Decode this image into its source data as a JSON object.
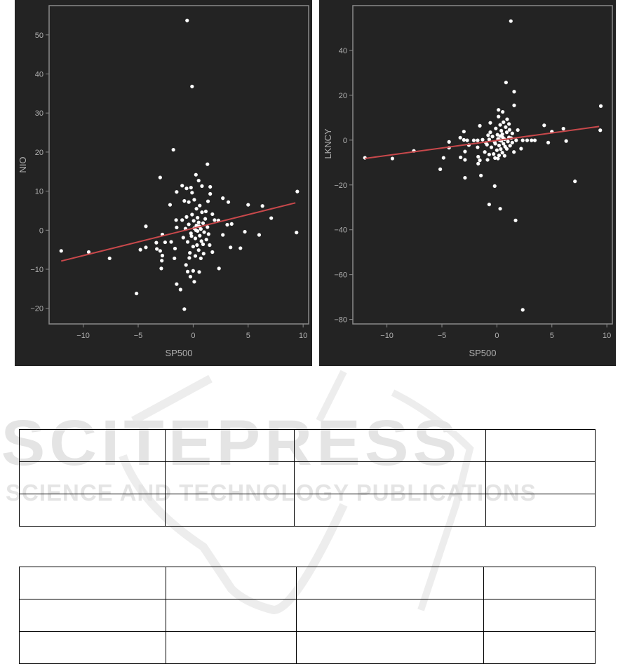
{
  "watermark": {
    "title": "SCITEPRESS",
    "subtitle": "SCIENCE AND TECHNOLOGY PUBLICATIONS"
  },
  "colors": {
    "panel_bg": "#232323",
    "point": "#ffffff",
    "regression": "#c8484b",
    "axis": "#8a8a8a",
    "tick_text": "#b0b0b0"
  },
  "chart_data": [
    {
      "type": "scatter",
      "xlabel": "SP500",
      "ylabel": "NIO",
      "xlim": [
        -13.1,
        10.5
      ],
      "ylim": [
        -24,
        57.5
      ],
      "xticks": [
        -10,
        -5,
        0,
        5,
        10
      ],
      "yticks": [
        -20,
        -10,
        0,
        10,
        20,
        30,
        40,
        50
      ],
      "regression": {
        "x": [
          -12,
          9.3
        ],
        "y": [
          -7.9,
          7.0
        ]
      },
      "points": [
        [
          -0.55,
          53.7
        ],
        [
          -0.1,
          36.8
        ],
        [
          -1.8,
          20.6
        ],
        [
          1.3,
          16.9
        ],
        [
          -3.0,
          13.5
        ],
        [
          0.25,
          14.2
        ],
        [
          0.5,
          12.7
        ],
        [
          -1.0,
          11.4
        ],
        [
          -0.6,
          10.7
        ],
        [
          -0.2,
          10.9
        ],
        [
          0.8,
          11.3
        ],
        [
          1.55,
          11.1
        ],
        [
          1.55,
          9.3
        ],
        [
          -1.5,
          9.8
        ],
        [
          -0.1,
          9.6
        ],
        [
          9.47,
          9.9
        ],
        [
          2.7,
          8.2
        ],
        [
          3.2,
          7.2
        ],
        [
          -0.8,
          7.5
        ],
        [
          -0.4,
          7.2
        ],
        [
          -2.1,
          6.5
        ],
        [
          5.0,
          6.5
        ],
        [
          6.3,
          6.2
        ],
        [
          7.1,
          3.1
        ],
        [
          -1.55,
          2.6
        ],
        [
          -1.0,
          2.6
        ],
        [
          -4.3,
          1.0
        ],
        [
          3.1,
          1.4
        ],
        [
          3.5,
          1.6
        ],
        [
          4.7,
          -0.4
        ],
        [
          6.0,
          -1.2
        ],
        [
          9.4,
          -0.6
        ],
        [
          2.7,
          -1.2
        ],
        [
          -2.8,
          -1.1
        ],
        [
          -12.0,
          -5.3
        ],
        [
          -9.5,
          -5.6
        ],
        [
          -7.6,
          -7.2
        ],
        [
          -4.8,
          -5.0
        ],
        [
          -4.3,
          -4.4
        ],
        [
          -3.35,
          -3.2
        ],
        [
          -3.3,
          -4.8
        ],
        [
          -3.0,
          -5.3
        ],
        [
          -2.8,
          -6.5
        ],
        [
          -2.85,
          -7.8
        ],
        [
          -2.9,
          -9.8
        ],
        [
          -2.55,
          -3.1
        ],
        [
          -2.0,
          -3.0
        ],
        [
          -1.65,
          -4.7
        ],
        [
          -1.7,
          -7.2
        ],
        [
          -1.5,
          0.7
        ],
        [
          3.4,
          -4.4
        ],
        [
          4.3,
          -4.6
        ],
        [
          2.35,
          -9.8
        ],
        [
          1.75,
          -5.6
        ],
        [
          1.5,
          -3.8
        ],
        [
          -0.65,
          -8.9
        ],
        [
          -0.5,
          -10.6
        ],
        [
          0.0,
          -10.4
        ],
        [
          0.55,
          -10.7
        ],
        [
          -0.25,
          -11.9
        ],
        [
          0.1,
          -13.2
        ],
        [
          -1.5,
          -13.8
        ],
        [
          -1.15,
          -15.2
        ],
        [
          -5.15,
          -16.2
        ],
        [
          -0.8,
          -20.2
        ],
        [
          1.95,
          2.6
        ],
        [
          2.3,
          2.5
        ],
        [
          1.75,
          4.1
        ],
        [
          1.35,
          7.4
        ],
        [
          0.1,
          0.5
        ],
        [
          0.3,
          1.2
        ],
        [
          0.5,
          2.0
        ],
        [
          -0.2,
          -0.8
        ],
        [
          0.7,
          0.3
        ],
        [
          0.9,
          1.8
        ],
        [
          0.2,
          -2.1
        ],
        [
          -0.4,
          1.5
        ],
        [
          0.6,
          -1.4
        ],
        [
          1.0,
          -0.5
        ],
        [
          0.4,
          3.2
        ],
        [
          -0.1,
          4.0
        ],
        [
          0.8,
          4.6
        ],
        [
          0.3,
          5.5
        ],
        [
          -0.5,
          -3.0
        ],
        [
          0.0,
          -4.2
        ],
        [
          0.5,
          -5.1
        ],
        [
          0.9,
          -3.6
        ],
        [
          1.2,
          -2.4
        ],
        [
          -0.3,
          -5.8
        ],
        [
          0.2,
          -6.6
        ],
        [
          0.7,
          -7.2
        ],
        [
          1.1,
          2.9
        ],
        [
          -0.7,
          0.4
        ],
        [
          -0.9,
          -1.9
        ],
        [
          1.3,
          0.8
        ],
        [
          0.6,
          6.3
        ],
        [
          0.1,
          7.8
        ],
        [
          -0.6,
          3.4
        ],
        [
          1.4,
          -1.0
        ],
        [
          0.4,
          -0.2
        ],
        [
          0.05,
          2.4
        ],
        [
          0.75,
          -2.8
        ],
        [
          -0.15,
          -1.5
        ],
        [
          0.35,
          -3.8
        ],
        [
          0.95,
          -6.0
        ],
        [
          -0.35,
          -7.1
        ],
        [
          1.15,
          4.8
        ],
        [
          0.25,
          0.0
        ],
        [
          0.55,
          1.0
        ]
      ]
    },
    {
      "type": "scatter",
      "xlabel": "SP500",
      "ylabel": "LKNCY",
      "xlim": [
        -13.1,
        10.5
      ],
      "ylim": [
        -82,
        60
      ],
      "xticks": [
        -10,
        -5,
        0,
        5,
        10
      ],
      "yticks": [
        -80,
        -60,
        -40,
        -20,
        0,
        20,
        40
      ],
      "regression": {
        "x": [
          -12,
          9.3
        ],
        "y": [
          -8.2,
          6.1
        ]
      },
      "points": [
        [
          1.27,
          53.1
        ],
        [
          0.83,
          25.7
        ],
        [
          1.57,
          21.6
        ],
        [
          1.57,
          15.5
        ],
        [
          9.45,
          15.2
        ],
        [
          9.4,
          4.4
        ],
        [
          0.15,
          13.5
        ],
        [
          0.53,
          12.6
        ],
        [
          0.15,
          10.5
        ],
        [
          -1.55,
          6.4
        ],
        [
          4.3,
          6.6
        ],
        [
          6.05,
          5.1
        ],
        [
          5.0,
          3.8
        ],
        [
          1.9,
          4.5
        ],
        [
          -3.0,
          3.8
        ],
        [
          -3.33,
          1.1
        ],
        [
          -3.0,
          0.1
        ],
        [
          -2.7,
          -0.1
        ],
        [
          -2.1,
          -0.1
        ],
        [
          -1.75,
          -0.1
        ],
        [
          2.35,
          -0.1
        ],
        [
          2.75,
          -0.1
        ],
        [
          3.15,
          -0.1
        ],
        [
          3.45,
          -0.1
        ],
        [
          4.67,
          -1.1
        ],
        [
          6.3,
          -0.4
        ],
        [
          -4.35,
          -0.8
        ],
        [
          -4.35,
          -3.4
        ],
        [
          -2.55,
          -2.2
        ],
        [
          -2.9,
          -5.1
        ],
        [
          -12.0,
          -7.9
        ],
        [
          -9.5,
          -8.2
        ],
        [
          -7.55,
          -4.8
        ],
        [
          -4.85,
          -7.9
        ],
        [
          -3.3,
          -7.7
        ],
        [
          -2.9,
          -8.8
        ],
        [
          -1.7,
          -7.4
        ],
        [
          -1.55,
          -9.0
        ],
        [
          -1.7,
          -10.5
        ],
        [
          -0.85,
          -8.8
        ],
        [
          -5.15,
          -13.0
        ],
        [
          -2.9,
          -16.8
        ],
        [
          -1.45,
          -15.8
        ],
        [
          2.2,
          -3.8
        ],
        [
          1.55,
          -5.3
        ],
        [
          -0.2,
          -20.5
        ],
        [
          7.1,
          -18.4
        ],
        [
          -0.7,
          -28.7
        ],
        [
          0.3,
          -30.6
        ],
        [
          1.7,
          -35.8
        ],
        [
          2.35,
          -75.7
        ],
        [
          -1.75,
          -3.2
        ],
        [
          -1.1,
          -5.3
        ],
        [
          -0.7,
          -6.4
        ],
        [
          -0.17,
          -8.0
        ],
        [
          0.1,
          -8.2
        ],
        [
          -0.6,
          7.7
        ],
        [
          0.93,
          9.3
        ],
        [
          1.1,
          7.2
        ],
        [
          1.4,
          3.0
        ],
        [
          1.75,
          -0.1
        ],
        [
          0.1,
          0.5
        ],
        [
          0.3,
          1.8
        ],
        [
          0.5,
          2.6
        ],
        [
          -0.2,
          -0.9
        ],
        [
          0.7,
          0.4
        ],
        [
          0.9,
          3.5
        ],
        [
          0.2,
          -2.4
        ],
        [
          -0.4,
          1.6
        ],
        [
          0.6,
          -1.6
        ],
        [
          1.0,
          -0.6
        ],
        [
          0.4,
          4.2
        ],
        [
          -0.1,
          5.2
        ],
        [
          0.8,
          5.8
        ],
        [
          0.3,
          6.8
        ],
        [
          -0.5,
          -3.2
        ],
        [
          0.0,
          -4.5
        ],
        [
          0.5,
          -5.6
        ],
        [
          0.9,
          -3.9
        ],
        [
          1.2,
          -2.5
        ],
        [
          -0.3,
          -6.2
        ],
        [
          0.2,
          -6.8
        ],
        [
          0.7,
          -7.0
        ],
        [
          1.1,
          1.2
        ],
        [
          -0.7,
          0.3
        ],
        [
          -0.9,
          -2.0
        ],
        [
          1.3,
          0.9
        ],
        [
          0.6,
          8.0
        ],
        [
          -0.6,
          3.5
        ],
        [
          1.4,
          -1.1
        ],
        [
          0.4,
          -0.3
        ],
        [
          0.05,
          2.4
        ],
        [
          0.75,
          -2.9
        ],
        [
          -0.15,
          -1.6
        ],
        [
          0.35,
          -4.0
        ],
        [
          -1.0,
          -1.2
        ],
        [
          -1.3,
          0.2
        ],
        [
          1.15,
          4.6
        ],
        [
          0.25,
          0.0
        ],
        [
          0.55,
          1.1
        ],
        [
          -0.8,
          2.2
        ]
      ]
    }
  ]
}
